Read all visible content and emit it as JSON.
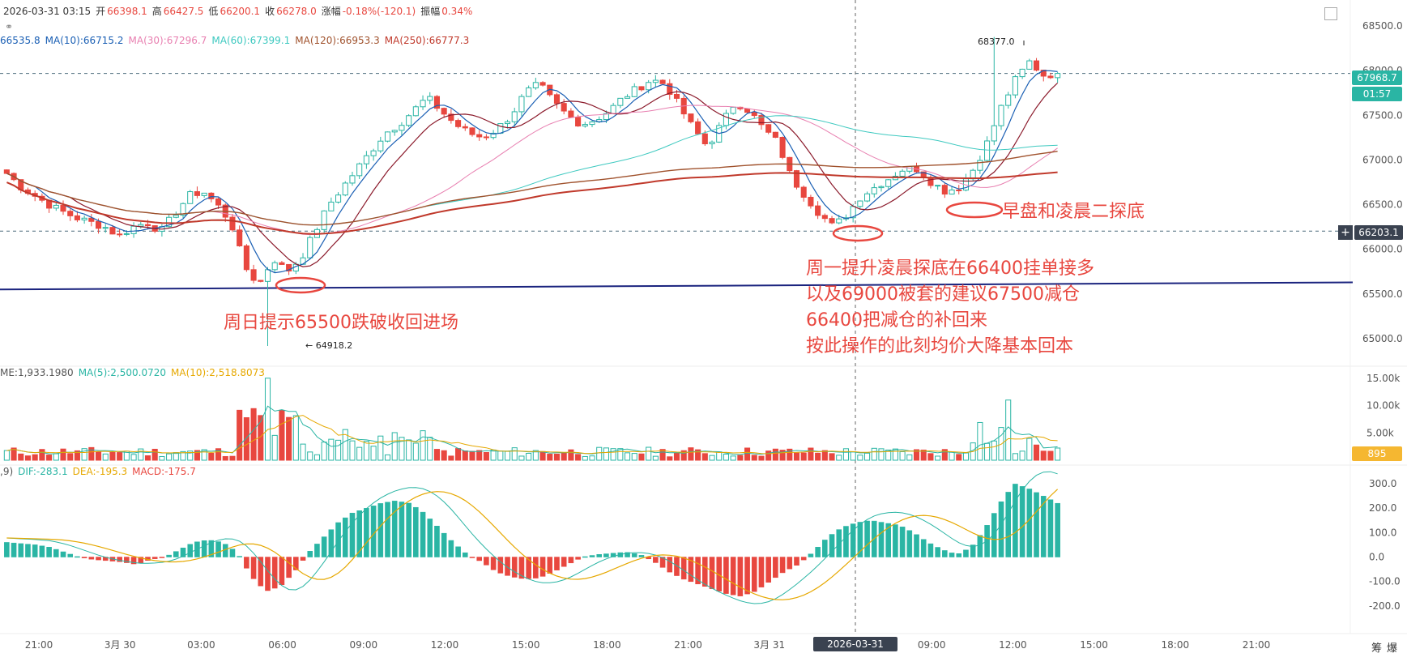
{
  "header": {
    "datetime": "2026-03-31 03:15",
    "open_label": "开",
    "open": "66398.1",
    "high_label": "高",
    "high": "66427.5",
    "low_label": "低",
    "low": "66200.1",
    "close_label": "收",
    "close": "66278.0",
    "change_label": "涨幅",
    "change": "-0.18%(-120.1)",
    "amp_label": "振幅",
    "amp": "0.34%"
  },
  "ma_legend": [
    {
      "text": "66535.8",
      "color": "#1a5fb4"
    },
    {
      "text": "MA(10):66715.2",
      "color": "#1a5fb4"
    },
    {
      "text": "MA(30):67296.7",
      "color": "#e87fb0"
    },
    {
      "text": "MA(60):67399.1",
      "color": "#3ec9c0"
    },
    {
      "text": "MA(120):66953.3",
      "color": "#a0522d"
    },
    {
      "text": "MA(250):66777.3",
      "color": "#c0392b"
    }
  ],
  "vol_legend": [
    {
      "text": "ME:1,933.1980",
      "color": "#555555"
    },
    {
      "text": "MA(5):2,500.0720",
      "color": "#2ab5a4"
    },
    {
      "text": "MA(10):2,518.8073",
      "color": "#e6a800"
    }
  ],
  "macd_legend": [
    {
      "text": ",9)",
      "color": "#555555"
    },
    {
      "text": "DIF:-283.1",
      "color": "#2ab5a4"
    },
    {
      "text": "DEA:-195.3",
      "color": "#e6a800"
    },
    {
      "text": "MACD:-175.7",
      "color": "#e8473f"
    }
  ],
  "price_axis": [
    "68500.0",
    "68000.0",
    "67500.0",
    "67000.0",
    "66500.0",
    "66000.0",
    "65500.0",
    "65000.0"
  ],
  "vol_axis": [
    "15.00k",
    "10.00k",
    "5.00k"
  ],
  "macd_axis": [
    "300.0",
    "200.0",
    "100.0",
    "0.0",
    "-100.0",
    "-200.0"
  ],
  "time_axis": [
    "21:00",
    "3月 30",
    "03:00",
    "06:00",
    "09:00",
    "12:00",
    "15:00",
    "18:00",
    "21:00",
    "3月 31",
    "06:00",
    "09:00",
    "12:00",
    "15:00",
    "18:00",
    "21:00"
  ],
  "crosshair_time": "2026-03-31 03:15",
  "current_price": "67968.7",
  "countdown": "01:57",
  "cursor_price": "66203.1",
  "volume_tag": "895",
  "peak_high": "68377.0",
  "peak_low": "64918.2",
  "bottom_right": [
    "筹",
    "爆"
  ],
  "annotations": {
    "left": "周日提示65500跌破收回进场",
    "right_top": "早盘和凌晨二探底",
    "right_lines": [
      "周一提升凌晨探底在66400挂单接多",
      "以及69000被套的建议67500减仓",
      "66400把减仓的补回来",
      "按此操作的此刻均价大降基本回本"
    ]
  },
  "colors": {
    "up": "#2ab5a4",
    "down": "#e8473f",
    "support": "#1a237e",
    "annotation": "#e8473f"
  },
  "chart_data": {
    "type": "candlestick",
    "symbol_interval": "15m",
    "price_range": [
      64800,
      68700
    ],
    "x": [
      "21:00",
      "3月 30",
      "03:00",
      "06:00",
      "09:00",
      "12:00",
      "15:00",
      "18:00",
      "21:00",
      "3月 31",
      "06:00",
      "09:00",
      "12:00",
      "15:00",
      "18:00",
      "21:00"
    ],
    "annotated_points": {
      "high": 68377.0,
      "low": 64918.2
    },
    "horizontal_lines": [
      67968.7,
      66203.1
    ],
    "support_line": [
      65550,
      65630
    ],
    "close_path": [
      66850,
      66700,
      66600,
      66500,
      66420,
      66350,
      66300,
      66250,
      66150,
      66250,
      66300,
      66200,
      66400,
      66600,
      66650,
      66500,
      66300,
      65800,
      65600,
      65900,
      65750,
      65900,
      66200,
      66500,
      66700,
      66900,
      67100,
      67300,
      67400,
      67550,
      67700,
      67550,
      67400,
      67300,
      67250,
      67350,
      67500,
      67750,
      67850,
      67650,
      67500,
      67400,
      67450,
      67550,
      67700,
      67800,
      67900,
      67850,
      67600,
      67350,
      67150,
      67400,
      67650,
      67550,
      67350,
      67200,
      66800,
      66600,
      66400,
      66250,
      66400,
      66600,
      66700,
      66800,
      66900,
      66900,
      66750,
      66650,
      66700,
      66900,
      67200,
      67600,
      67900,
      68100,
      67950,
      67968.7
    ],
    "volume_range": [
      0,
      16000
    ],
    "macd_range": [
      -300,
      340
    ],
    "macd_hist": [
      60,
      55,
      50,
      40,
      20,
      0,
      -10,
      -15,
      -20,
      -30,
      -10,
      0,
      30,
      60,
      70,
      60,
      20,
      -80,
      -140,
      -120,
      -60,
      20,
      80,
      140,
      180,
      200,
      220,
      230,
      220,
      180,
      120,
      60,
      10,
      -20,
      -60,
      -80,
      -90,
      -85,
      -60,
      -30,
      0,
      10,
      15,
      20,
      10,
      -20,
      -60,
      -90,
      -110,
      -130,
      -150,
      -160,
      -140,
      -100,
      -60,
      -30,
      20,
      80,
      120,
      140,
      150,
      140,
      130,
      100,
      60,
      30,
      10,
      40,
      120,
      220,
      300,
      280,
      250,
      220
    ]
  }
}
